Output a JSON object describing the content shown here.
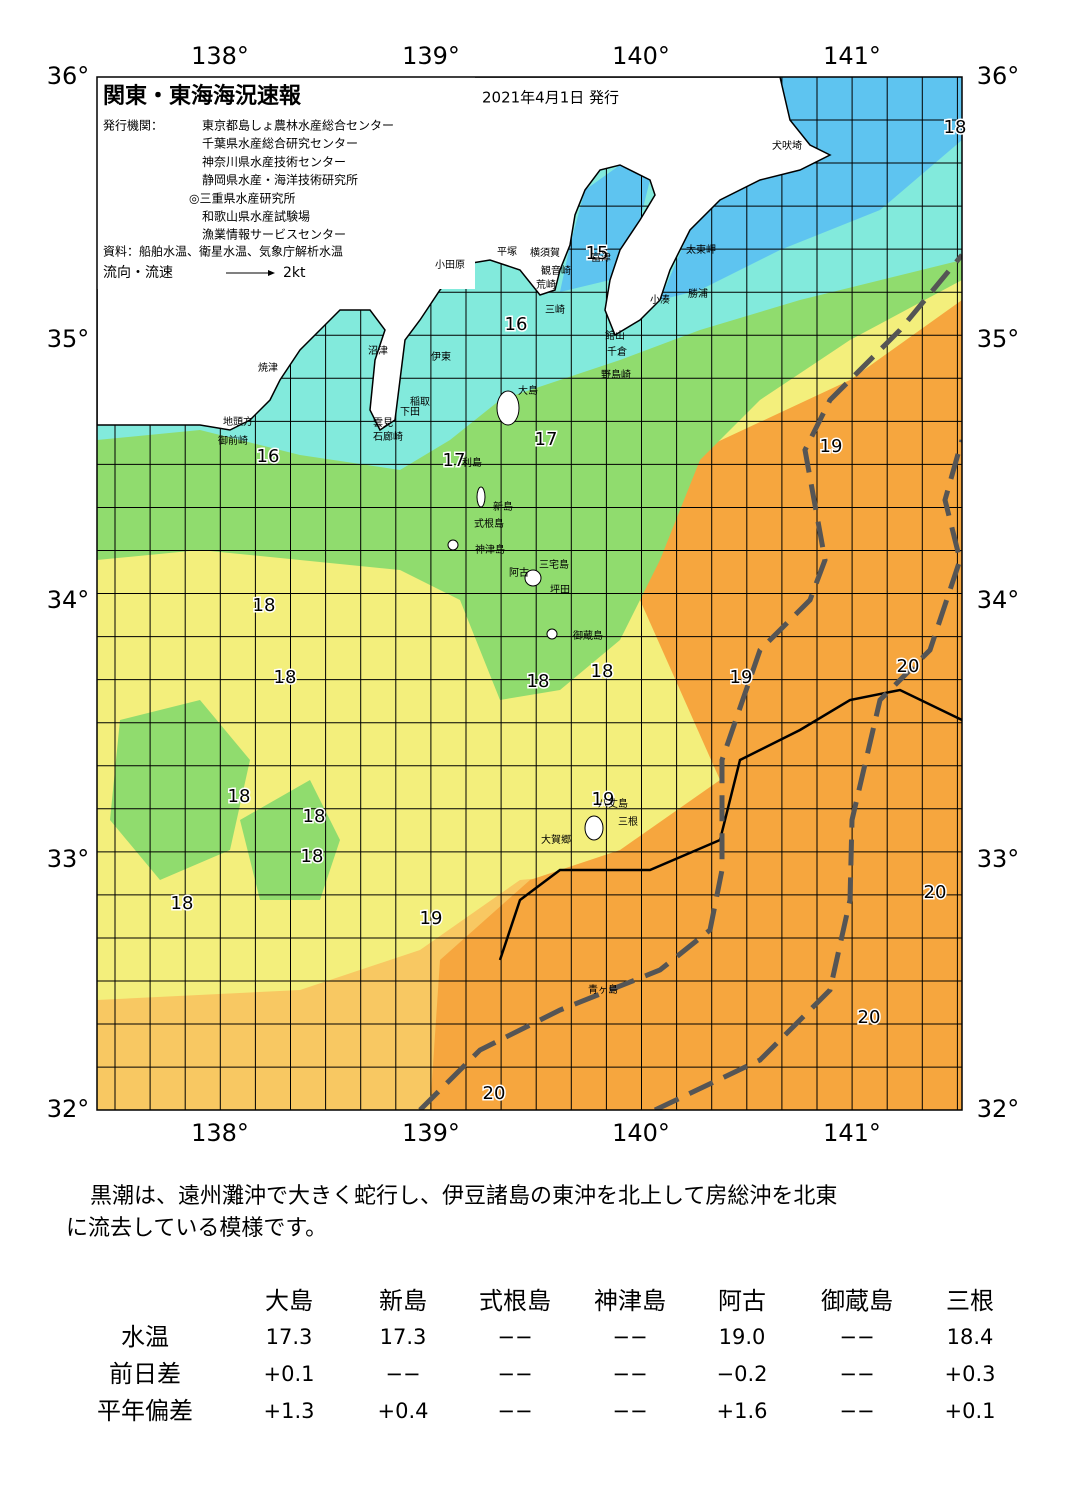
{
  "header": {
    "title": "関東・東海海況速報",
    "date": "2021年4月1日 発行",
    "publisher_label": "発行機関：",
    "publishers": [
      "東京都島しょ農林水産総合センター",
      "千葉県水産総合研究センター",
      "神奈川県水産技術センター",
      "静岡県水産・海洋技術研究所",
      "◎三重県水産研究所",
      "和歌山県水産試験場",
      "漁業情報サービスセンター"
    ],
    "source": "資料：船舶水温、衛星水温、気象庁解析水温",
    "flow_label": "流向・流速",
    "flow_scale": "2kt"
  },
  "map": {
    "lon_labels": [
      "138°",
      "139°",
      "140°",
      "141°"
    ],
    "lat_labels": [
      "36°",
      "35°",
      "34°",
      "33°",
      "32°"
    ],
    "temperature_labels": [
      "16",
      "15",
      "16",
      "17",
      "17",
      "19",
      "18",
      "18",
      "18",
      "18",
      "19",
      "20",
      "18",
      "18",
      "18",
      "19",
      "20",
      "18",
      "19",
      "20",
      "20",
      "18"
    ],
    "place_names": [
      "犬吠埼",
      "太東岬",
      "勝浦",
      "小湊",
      "館山",
      "千倉",
      "野島崎",
      "富津",
      "横須賀",
      "観音崎",
      "荒崎",
      "三崎",
      "平塚",
      "小田原",
      "沼津",
      "伊東",
      "稲取",
      "下田",
      "雲見",
      "石廊崎",
      "焼津",
      "地頭方",
      "御前崎",
      "大島",
      "利島",
      "新島",
      "式根島",
      "神津島",
      "三宅島",
      "阿古",
      "坪田",
      "御蔵島",
      "八丈島",
      "三根",
      "大賀郷",
      "青ヶ島"
    ]
  },
  "comment": [
    "黒潮は、遠州灘沖で大きく蛇行し、伊豆諸島の東沖を北上して房総沖を北東",
    "に流去している模様です。"
  ],
  "table": {
    "columns": [
      "大島",
      "新島",
      "式根島",
      "神津島",
      "阿古",
      "御蔵島",
      "三根"
    ],
    "rows": [
      {
        "label": "水温",
        "cells": [
          "17.3",
          "17.3",
          "−−",
          "−−",
          "19.0",
          "−−",
          "18.4"
        ]
      },
      {
        "label": "前日差",
        "cells": [
          "+0.1",
          "−−",
          "−−",
          "−−",
          "−0.2",
          "−−",
          "+0.3"
        ]
      },
      {
        "label": "平年偏差",
        "cells": [
          "+1.3",
          "+0.4",
          "−−",
          "−−",
          "+1.6",
          "−−",
          "+0.1"
        ]
      }
    ]
  }
}
